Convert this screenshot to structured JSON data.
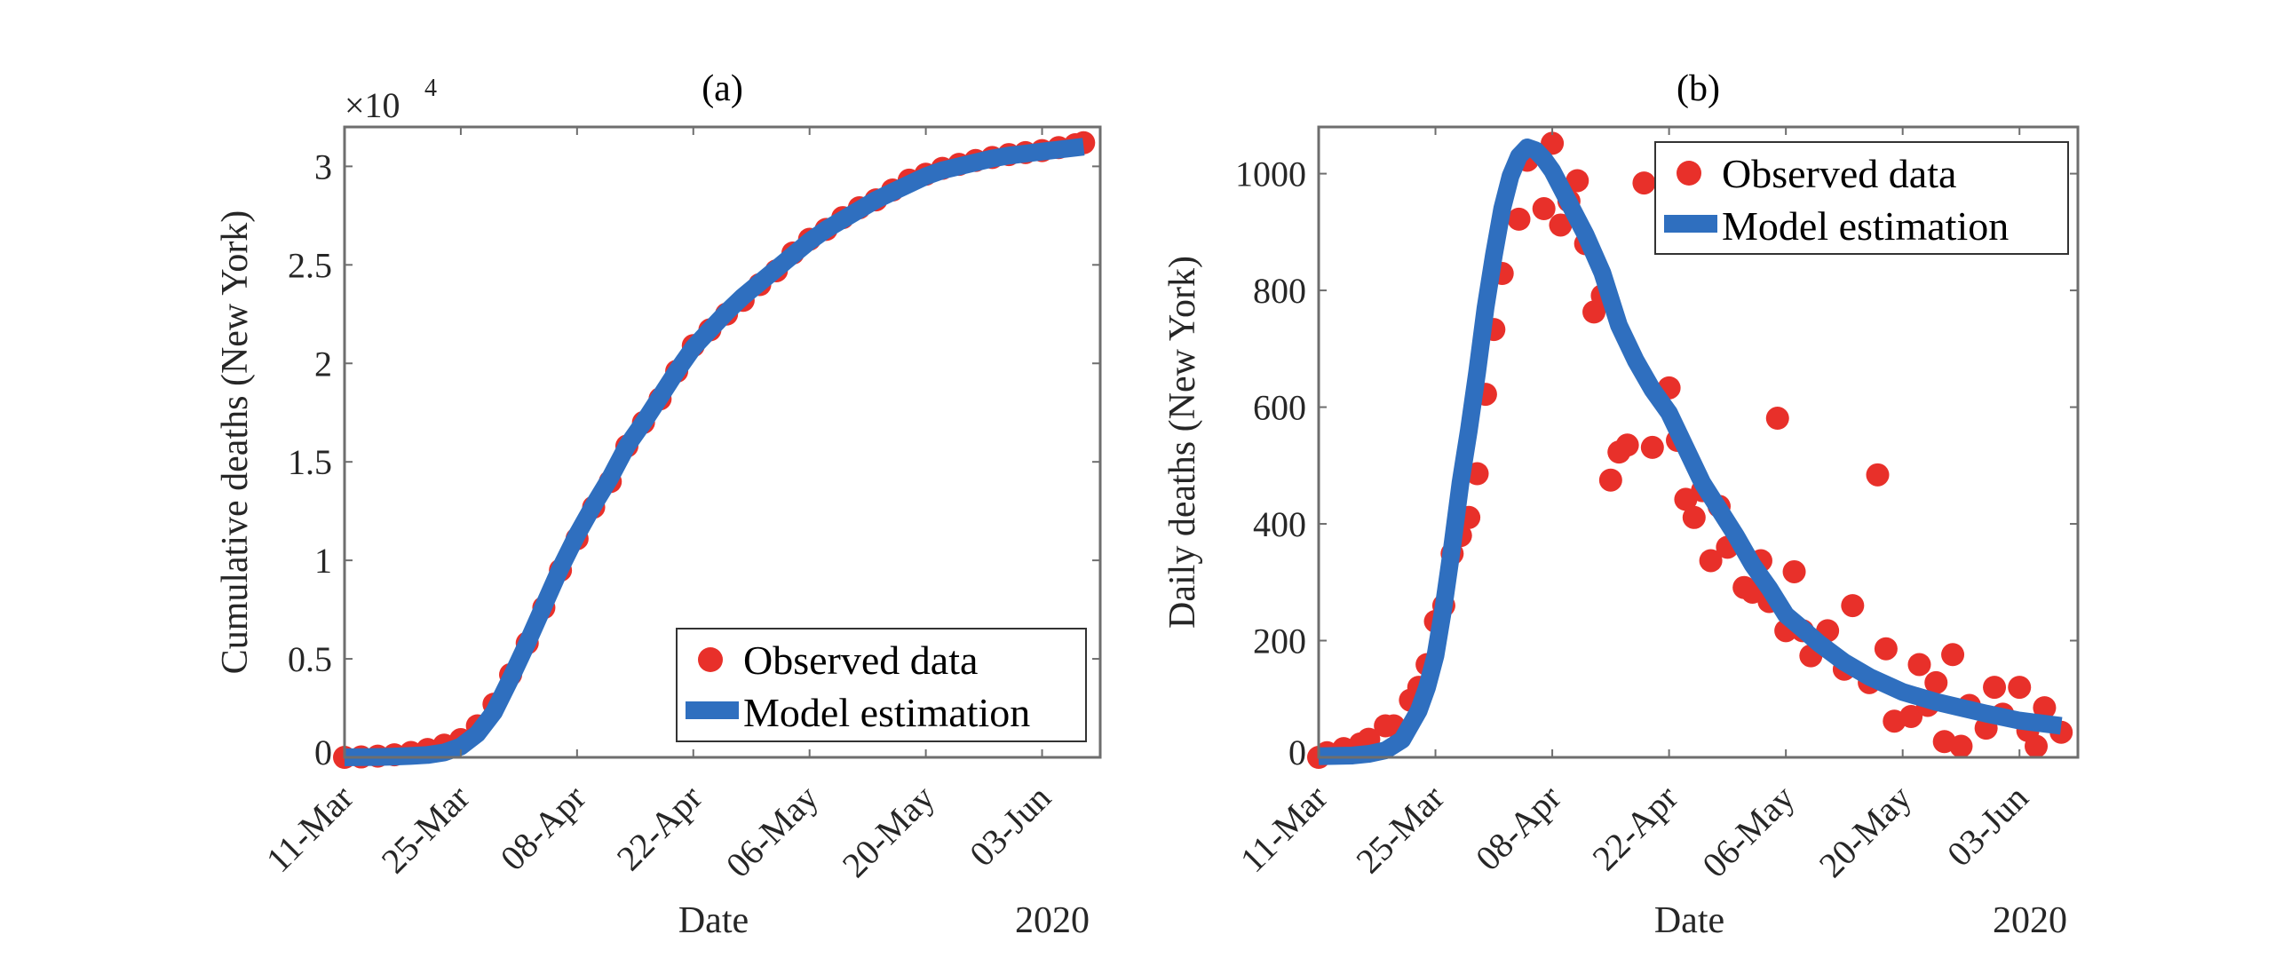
{
  "colors": {
    "observed": "#e8302a",
    "model": "#2f6fbf",
    "axis": "#6e6e6e"
  },
  "chart_data": [
    {
      "type": "scatter",
      "title": "(a)",
      "xlabel": "Date",
      "xlabel_secondary": "2020",
      "ylabel": "Cumulative deaths (New York)",
      "y_exponent_label": "×10",
      "y_exponent": "4",
      "xlim": [
        "2020-03-11",
        "2020-06-10"
      ],
      "ylim": [
        0,
        32000
      ],
      "xticks": [
        "2020-03-11",
        "2020-03-25",
        "2020-04-08",
        "2020-04-22",
        "2020-05-06",
        "2020-05-20",
        "2020-06-03"
      ],
      "xtick_labels": [
        "11-Mar",
        "25-Mar",
        "08-Apr",
        "22-Apr",
        "06-May",
        "20-May",
        "03-Jun"
      ],
      "yticks": [
        0,
        5000,
        10000,
        15000,
        20000,
        25000,
        30000
      ],
      "ytick_labels": [
        "0",
        "0.5",
        "1",
        "1.5",
        "2",
        "2.5",
        "3"
      ],
      "legend": {
        "placement": "bottom-right",
        "entries": [
          "Observed data",
          "Model estimation"
        ]
      },
      "grid": false,
      "series": [
        {
          "name": "Observed data",
          "kind": "scatter",
          "x": [
            "2020-03-11",
            "2020-03-13",
            "2020-03-15",
            "2020-03-17",
            "2020-03-19",
            "2020-03-21",
            "2020-03-23",
            "2020-03-25",
            "2020-03-27",
            "2020-03-29",
            "2020-03-31",
            "2020-04-02",
            "2020-04-04",
            "2020-04-06",
            "2020-04-08",
            "2020-04-10",
            "2020-04-12",
            "2020-04-14",
            "2020-04-16",
            "2020-04-18",
            "2020-04-20",
            "2020-04-22",
            "2020-04-24",
            "2020-04-26",
            "2020-04-28",
            "2020-04-30",
            "2020-05-02",
            "2020-05-04",
            "2020-05-06",
            "2020-05-08",
            "2020-05-10",
            "2020-05-12",
            "2020-05-14",
            "2020-05-16",
            "2020-05-18",
            "2020-05-20",
            "2020-05-22",
            "2020-05-24",
            "2020-05-26",
            "2020-05-28",
            "2020-05-30",
            "2020-06-01",
            "2020-06-03",
            "2020-06-05",
            "2020-06-07",
            "2020-06-08"
          ],
          "y": [
            0,
            20,
            60,
            130,
            250,
            400,
            620,
            900,
            1600,
            2700,
            4200,
            5800,
            7600,
            9500,
            11100,
            12700,
            14000,
            15800,
            17000,
            18200,
            19600,
            20900,
            21700,
            22500,
            23200,
            24000,
            24700,
            25600,
            26300,
            26800,
            27400,
            27900,
            28300,
            28800,
            29300,
            29600,
            29900,
            30100,
            30300,
            30450,
            30600,
            30700,
            30800,
            30950,
            31100,
            31200
          ]
        },
        {
          "name": "Model estimation",
          "kind": "line",
          "x": [
            "2020-03-11",
            "2020-03-13",
            "2020-03-15",
            "2020-03-17",
            "2020-03-19",
            "2020-03-21",
            "2020-03-23",
            "2020-03-25",
            "2020-03-27",
            "2020-03-29",
            "2020-03-31",
            "2020-04-02",
            "2020-04-04",
            "2020-04-06",
            "2020-04-08",
            "2020-04-10",
            "2020-04-12",
            "2020-04-14",
            "2020-04-16",
            "2020-04-18",
            "2020-04-20",
            "2020-04-22",
            "2020-04-24",
            "2020-04-26",
            "2020-04-28",
            "2020-04-30",
            "2020-05-02",
            "2020-05-04",
            "2020-05-06",
            "2020-05-08",
            "2020-05-10",
            "2020-05-12",
            "2020-05-14",
            "2020-05-16",
            "2020-05-18",
            "2020-05-20",
            "2020-05-22",
            "2020-05-24",
            "2020-05-26",
            "2020-05-28",
            "2020-05-30",
            "2020-06-01",
            "2020-06-03",
            "2020-06-05",
            "2020-06-07",
            "2020-06-08"
          ],
          "y": [
            0,
            10,
            20,
            40,
            70,
            120,
            250,
            550,
            1200,
            2300,
            4000,
            5800,
            7700,
            9600,
            11300,
            12800,
            14200,
            15800,
            17000,
            18300,
            19600,
            20800,
            21700,
            22600,
            23400,
            24100,
            24800,
            25500,
            26200,
            26800,
            27300,
            27800,
            28300,
            28700,
            29100,
            29500,
            29800,
            30000,
            30200,
            30400,
            30550,
            30650,
            30750,
            30850,
            30950,
            31000
          ]
        }
      ]
    },
    {
      "type": "scatter",
      "title": "(b)",
      "xlabel": "Date",
      "xlabel_secondary": "2020",
      "ylabel": "Daily deaths (New York)",
      "xlim": [
        "2020-03-11",
        "2020-06-10"
      ],
      "ylim": [
        0,
        1080
      ],
      "xticks": [
        "2020-03-11",
        "2020-03-25",
        "2020-04-08",
        "2020-04-22",
        "2020-05-06",
        "2020-05-20",
        "2020-06-03"
      ],
      "xtick_labels": [
        "11-Mar",
        "25-Mar",
        "08-Apr",
        "22-Apr",
        "06-May",
        "20-May",
        "03-Jun"
      ],
      "yticks": [
        0,
        200,
        400,
        600,
        800,
        1000
      ],
      "ytick_labels": [
        "0",
        "200",
        "400",
        "600",
        "800",
        "1000"
      ],
      "legend": {
        "placement": "top-right",
        "entries": [
          "Observed data",
          "Model estimation"
        ]
      },
      "grid": false,
      "series": [
        {
          "name": "Observed data",
          "kind": "scatter",
          "x": [
            "2020-03-11",
            "2020-03-12",
            "2020-03-14",
            "2020-03-16",
            "2020-03-17",
            "2020-03-19",
            "2020-03-20",
            "2020-03-22",
            "2020-03-23",
            "2020-03-24",
            "2020-03-25",
            "2020-03-26",
            "2020-03-27",
            "2020-03-28",
            "2020-03-29",
            "2020-03-30",
            "2020-03-31",
            "2020-04-01",
            "2020-04-02",
            "2020-04-04",
            "2020-04-05",
            "2020-04-07",
            "2020-04-08",
            "2020-04-09",
            "2020-04-10",
            "2020-04-11",
            "2020-04-12",
            "2020-04-13",
            "2020-04-14",
            "2020-04-15",
            "2020-04-16",
            "2020-04-17",
            "2020-04-19",
            "2020-04-20",
            "2020-04-22",
            "2020-04-23",
            "2020-04-24",
            "2020-04-25",
            "2020-04-26",
            "2020-04-27",
            "2020-04-28",
            "2020-04-29",
            "2020-05-01",
            "2020-05-02",
            "2020-05-03",
            "2020-05-04",
            "2020-05-05",
            "2020-05-06",
            "2020-05-07",
            "2020-05-08",
            "2020-05-09",
            "2020-05-11",
            "2020-05-13",
            "2020-05-14",
            "2020-05-16",
            "2020-05-17",
            "2020-05-18",
            "2020-05-19",
            "2020-05-21",
            "2020-05-22",
            "2020-05-23",
            "2020-05-24",
            "2020-05-25",
            "2020-05-26",
            "2020-05-27",
            "2020-05-28",
            "2020-05-30",
            "2020-05-31",
            "2020-06-01",
            "2020-06-03",
            "2020-06-04",
            "2020-06-05",
            "2020-06-06",
            "2020-06-08"
          ],
          "y": [
            0,
            8,
            15,
            23,
            31,
            54,
            54,
            98,
            120,
            159,
            233,
            260,
            349,
            380,
            411,
            486,
            622,
            733,
            829,
            922,
            1023,
            940,
            1052,
            912,
            953,
            988,
            880,
            763,
            791,
            475,
            523,
            535,
            984,
            531,
            633,
            543,
            442,
            411,
            457,
            337,
            430,
            360,
            291,
            283,
            337,
            267,
            581,
            217,
            318,
            217,
            174,
            217,
            151,
            260,
            128,
            484,
            186,
            62,
            70,
            159,
            89,
            128,
            27,
            176,
            19,
            89,
            50,
            120,
            74,
            120,
            46,
            19,
            85,
            43
          ]
        },
        {
          "name": "Model estimation",
          "kind": "line",
          "x": [
            "2020-03-11",
            "2020-03-15",
            "2020-03-17",
            "2020-03-19",
            "2020-03-21",
            "2020-03-23",
            "2020-03-24",
            "2020-03-25",
            "2020-03-26",
            "2020-03-27",
            "2020-03-28",
            "2020-03-29",
            "2020-03-30",
            "2020-03-31",
            "2020-04-01",
            "2020-04-02",
            "2020-04-03",
            "2020-04-04",
            "2020-04-05",
            "2020-04-06",
            "2020-04-07",
            "2020-04-08",
            "2020-04-10",
            "2020-04-12",
            "2020-04-14",
            "2020-04-16",
            "2020-04-18",
            "2020-04-20",
            "2020-04-22",
            "2020-04-24",
            "2020-04-26",
            "2020-04-28",
            "2020-04-30",
            "2020-05-02",
            "2020-05-04",
            "2020-05-06",
            "2020-05-08",
            "2020-05-10",
            "2020-05-13",
            "2020-05-16",
            "2020-05-20",
            "2020-05-24",
            "2020-05-27",
            "2020-05-30",
            "2020-06-03",
            "2020-06-08"
          ],
          "y": [
            2,
            3,
            6,
            12,
            30,
            80,
            120,
            174,
            260,
            360,
            470,
            560,
            660,
            770,
            860,
            940,
            996,
            1030,
            1045,
            1040,
            1025,
            1005,
            950,
            895,
            830,
            740,
            680,
            630,
            590,
            530,
            470,
            425,
            380,
            330,
            290,
            244,
            220,
            195,
            163,
            138,
            112,
            95,
            85,
            75,
            63,
            54
          ]
        }
      ]
    }
  ]
}
